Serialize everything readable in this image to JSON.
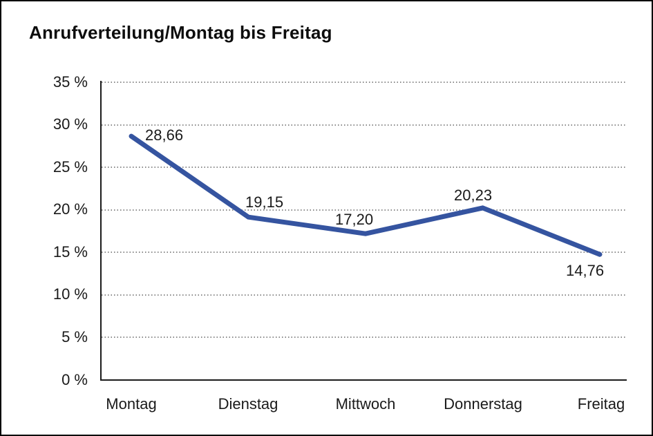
{
  "title": "Anrufverteilung/Montag bis Freitag",
  "chart_data": {
    "type": "line",
    "title": "Anrufverteilung/Montag bis Freitag",
    "categories": [
      "Montag",
      "Dienstag",
      "Mittwoch",
      "Donnerstag",
      "Freitag"
    ],
    "values": [
      28.66,
      19.15,
      17.2,
      20.23,
      14.76
    ],
    "point_labels": [
      "28,66",
      "19,15",
      "17,20",
      "20,23",
      "14,76"
    ],
    "yticks": [
      "35 %",
      "30 %",
      "25 %",
      "20 %",
      "15 %",
      "10 %",
      "5 %",
      "0 %"
    ],
    "ylim": [
      0,
      35
    ],
    "ytick_step": 5,
    "xlabel": "",
    "ylabel": "",
    "legend": "none",
    "grid": "horizontal-dotted",
    "line_color": "#3554A0",
    "axis_color": "#1a1a1a",
    "grid_color": "#8a8a8a",
    "background_color": "#ffffff"
  }
}
